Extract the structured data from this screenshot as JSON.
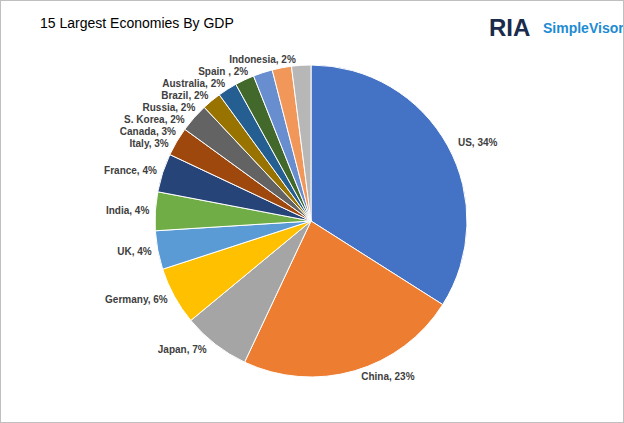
{
  "chart_data": {
    "type": "pie",
    "title": "15 Largest Economies By GDP",
    "annotations": [
      "RIA",
      "SimpleVisor"
    ],
    "categories": [
      "US",
      "China",
      "Japan",
      "Germany",
      "UK",
      "India",
      "France",
      "Italy",
      "Canada",
      "S. Korea",
      "Russia",
      "Brazil",
      "Australia",
      "Spain",
      "Indonesia"
    ],
    "values": [
      34,
      23,
      7,
      6,
      4,
      4,
      4,
      3,
      3,
      2,
      2,
      2,
      2,
      2,
      2
    ],
    "value_labels": [
      "US, 34%",
      "China, 23%",
      "Japan, 7%",
      "Germany, 6%",
      "UK, 4%",
      "India, 4%",
      "France, 4%",
      "Italy, 3%",
      "Canada, 3%",
      "S. Korea, 2%",
      "Russia, 2%",
      "Brazil, 2%",
      "Australia, 2%",
      "Spain , 2%",
      "Indonesia, 2%"
    ],
    "colors": [
      "#4472c4",
      "#ed7d31",
      "#a5a5a5",
      "#ffc000",
      "#5b9bd5",
      "#70ad47",
      "#264478",
      "#9e480e",
      "#636363",
      "#997300",
      "#255e91",
      "#43682b",
      "#698ed0",
      "#f1975a",
      "#b7b7b7"
    ],
    "data_labels": true
  }
}
